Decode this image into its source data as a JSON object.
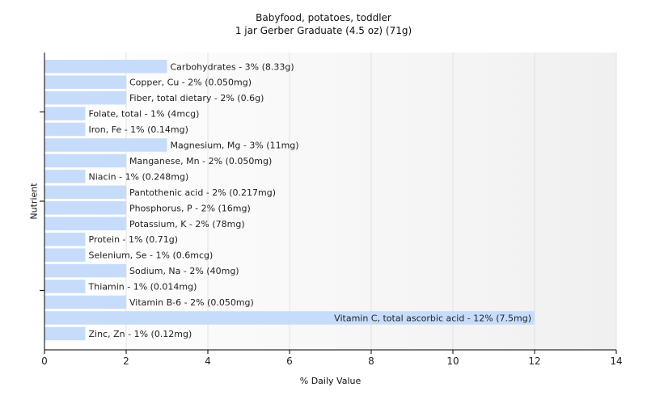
{
  "chart_data": {
    "type": "bar",
    "orientation": "horizontal",
    "title": "Babyfood, potatoes, toddler",
    "subtitle": "1 jar Gerber Graduate (4.5 oz) (71g)",
    "xlabel": "% Daily Value",
    "ylabel": "Nutrient",
    "xlim": [
      0,
      14
    ],
    "xticks": [
      0,
      2,
      4,
      6,
      8,
      10,
      12,
      14
    ],
    "grid": true,
    "bar_color": "#c6dcfa",
    "categories": [
      "Carbohydrates",
      "Copper, Cu",
      "Fiber, total dietary",
      "Folate, total",
      "Iron, Fe",
      "Magnesium, Mg",
      "Manganese, Mn",
      "Niacin",
      "Pantothenic acid",
      "Phosphorus, P",
      "Potassium, K",
      "Protein",
      "Selenium, Se",
      "Sodium, Na",
      "Thiamin",
      "Vitamin B-6",
      "Vitamin C, total ascorbic acid",
      "Zinc, Zn"
    ],
    "values": [
      3,
      2,
      2,
      1,
      1,
      3,
      2,
      1,
      2,
      2,
      2,
      1,
      1,
      2,
      1,
      2,
      12,
      1
    ],
    "labels": [
      "Carbohydrates - 3% (8.33g)",
      "Copper, Cu - 2% (0.050mg)",
      "Fiber, total dietary - 2% (0.6g)",
      "Folate, total - 1% (4mcg)",
      "Iron, Fe - 1% (0.14mg)",
      "Magnesium, Mg - 3% (11mg)",
      "Manganese, Mn - 2% (0.050mg)",
      "Niacin - 1% (0.248mg)",
      "Pantothenic acid - 2% (0.217mg)",
      "Phosphorus, P - 2% (16mg)",
      "Potassium, K - 2% (78mg)",
      "Protein - 1% (0.71g)",
      "Selenium, Se - 1% (0.6mcg)",
      "Sodium, Na - 2% (40mg)",
      "Thiamin - 1% (0.014mg)",
      "Vitamin B-6 - 2% (0.050mg)",
      "Vitamin C, total ascorbic acid - 12% (7.5mg)",
      "Zinc, Zn - 1% (0.12mg)"
    ]
  }
}
